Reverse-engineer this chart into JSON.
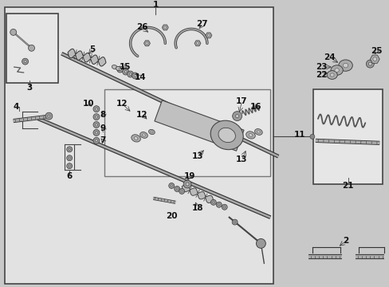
{
  "bg": "#c8c8c8",
  "main_box_fc": "#e0e0e0",
  "main_box_ec": "#444444",
  "inner_box_fc": "#e4e4e4",
  "inner_box_ec": "#666666",
  "topleft_box_fc": "#e4e4e4",
  "topleft_box_ec": "#444444",
  "right_box_fc": "#e4e4e4",
  "right_box_ec": "#444444",
  "part_color": "#888888",
  "part_ec": "#333333",
  "line_color": "#444444",
  "label_fs": 7,
  "label_color": "#111111"
}
